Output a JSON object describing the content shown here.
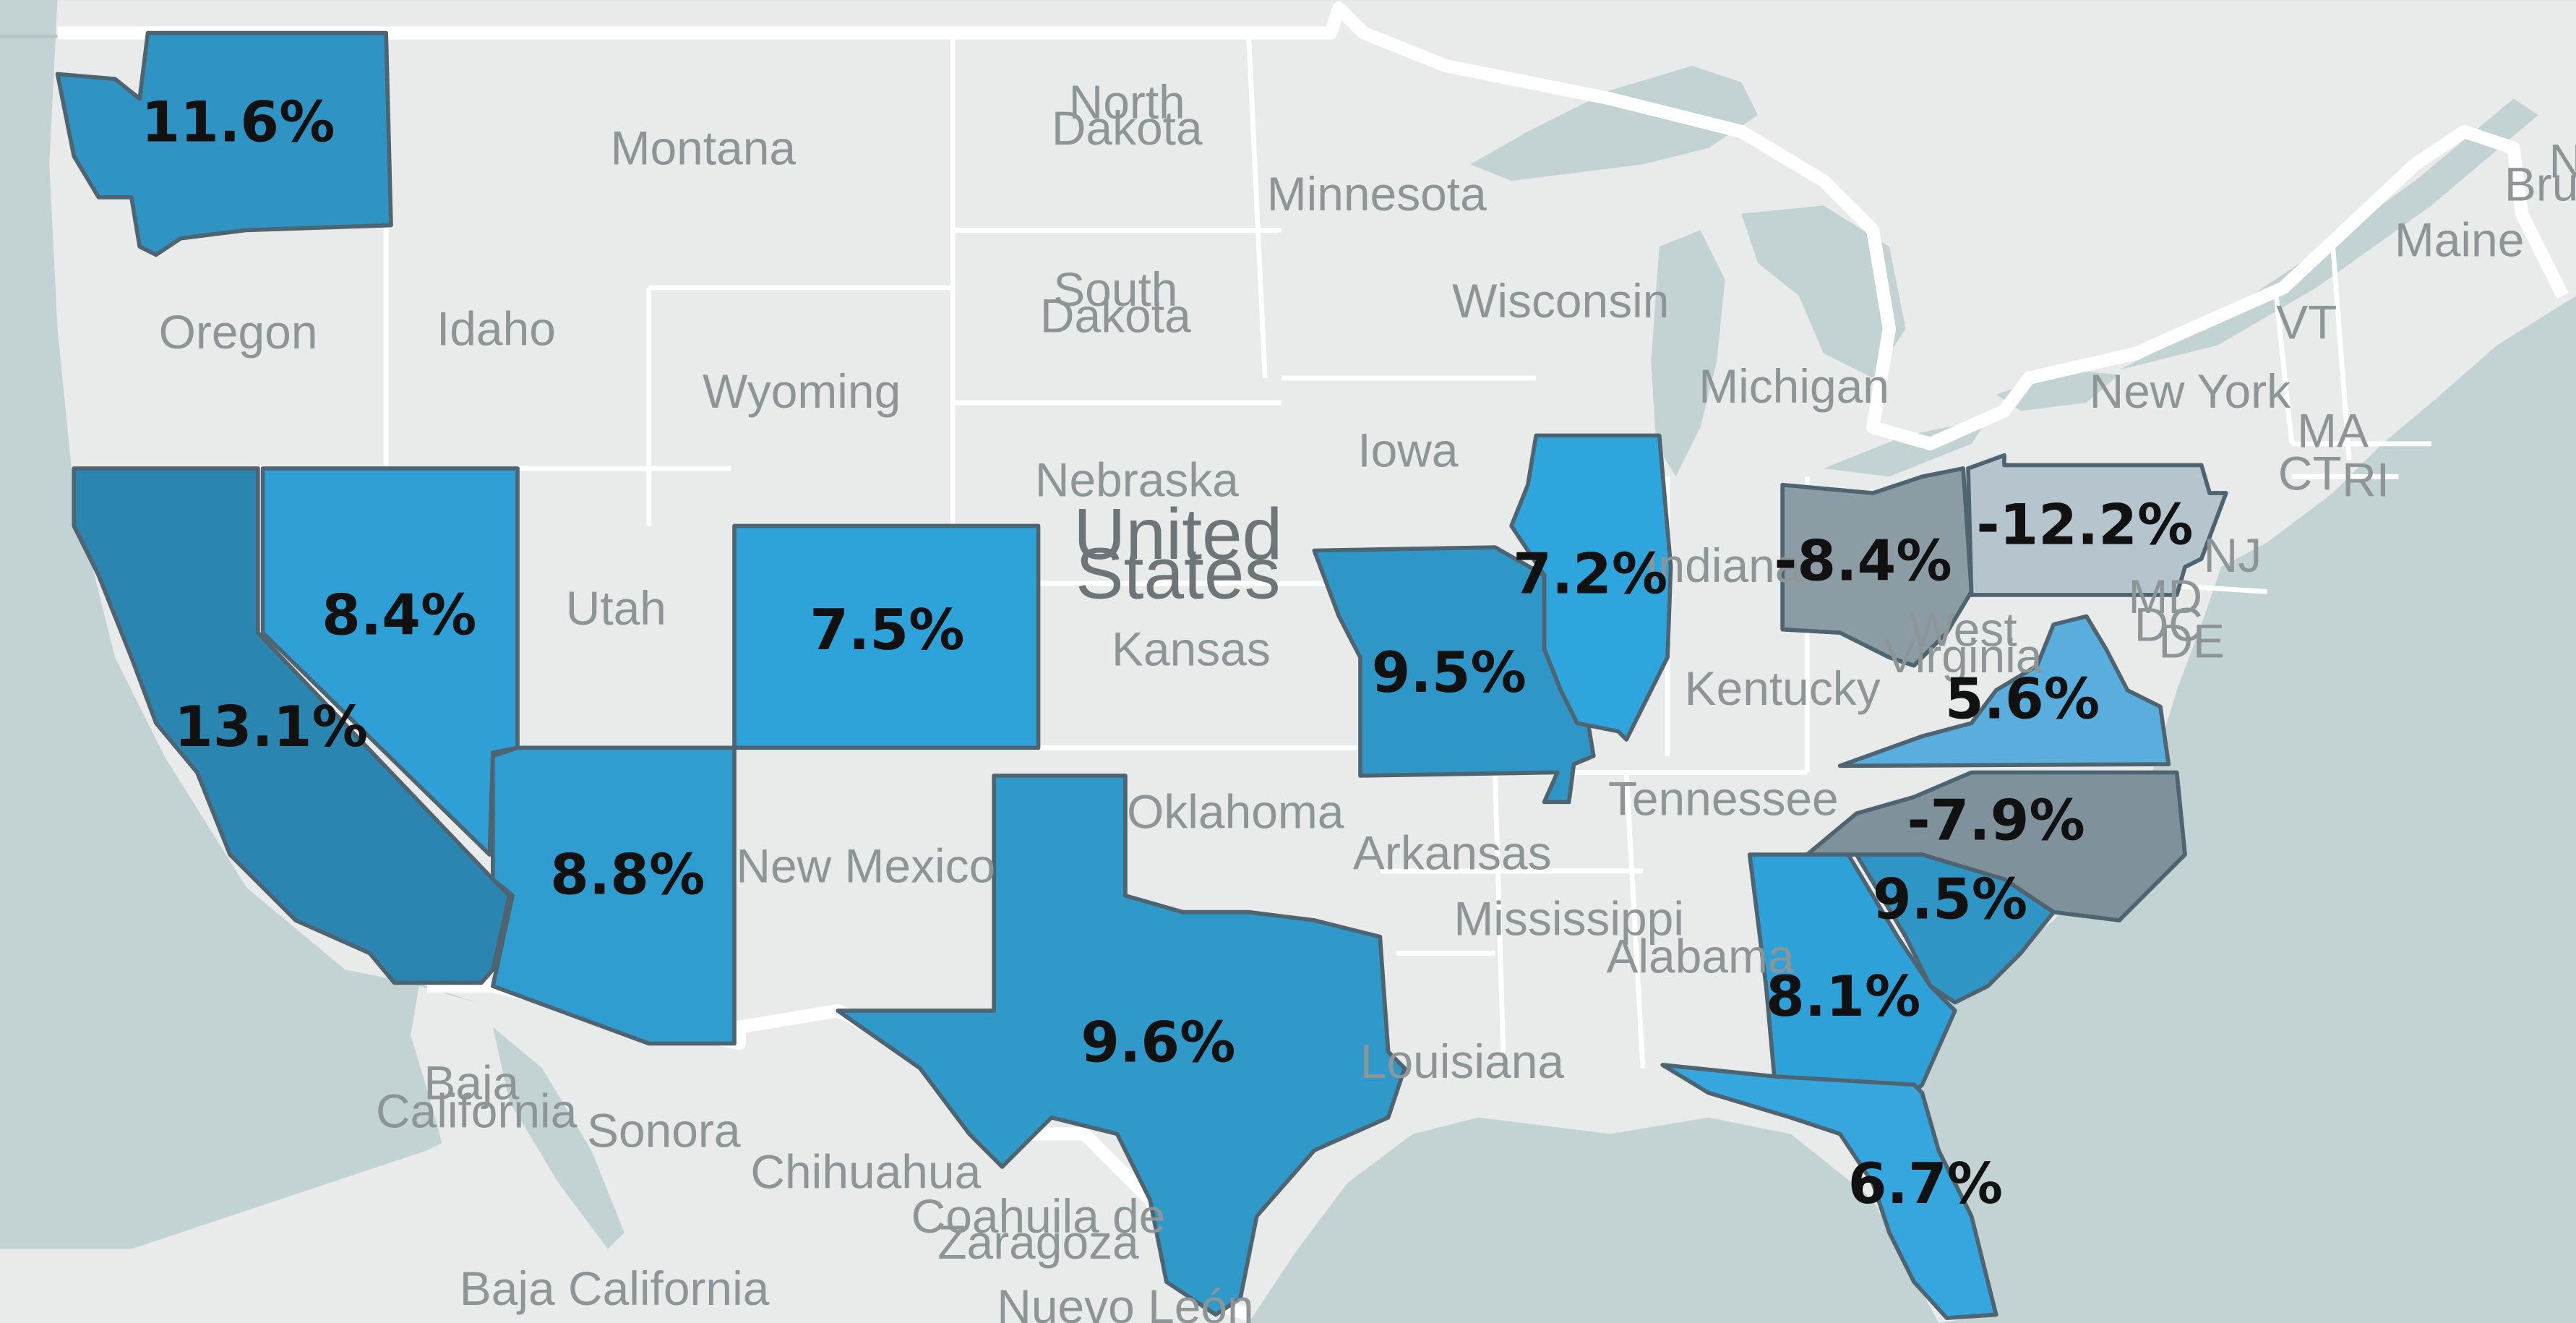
{
  "map": {
    "country_label_line1": "United",
    "country_label_line2": "States",
    "colors": {
      "ocean": "#c3d2d3",
      "land": "#e9eaea",
      "border": "#ffffff",
      "positive_high": "#2a85b0",
      "positive_mid": "#2f9acb",
      "positive_low": "#2ea3da",
      "positive_pale": "#5aaedd",
      "negative_mid": "#7f929c",
      "negative_low": "#8c9ca5",
      "negative_pale": "#b5c4cd"
    },
    "base_labels": {
      "montana": "Montana",
      "north_dakota_1": "North",
      "north_dakota_2": "Dakota",
      "minnesota": "Minnesota",
      "oregon": "Oregon",
      "idaho": "Idaho",
      "wyoming": "Wyoming",
      "south_dakota_1": "South",
      "south_dakota_2": "Dakota",
      "wisconsin": "Wisconsin",
      "michigan": "Michigan",
      "iowa": "Iowa",
      "nebraska": "Nebraska",
      "utah": "Utah",
      "kansas": "Kansas",
      "indiana": "Indiana",
      "west_virginia_1": "West",
      "west_virginia_2": "Virginia",
      "kentucky": "Kentucky",
      "tennessee": "Tennessee",
      "oklahoma": "Oklahoma",
      "arkansas": "Arkansas",
      "new_mexico": "New Mexico",
      "mississippi": "Mississippi",
      "alabama": "Alabama",
      "louisiana": "Louisiana",
      "new_york": "New York",
      "maine": "Maine",
      "vt": "VT",
      "ma": "MA",
      "ct": "CT",
      "ri": "RI",
      "nj": "NJ",
      "md": "MD",
      "dc": "DC",
      "de": "DE",
      "baja_california_1": "Baja",
      "baja_california_2": "California",
      "sonora": "Sonora",
      "chihuahua": "Chihuahua",
      "coahuila_1": "Coahuila de",
      "coahuila_2": "Zaragoza",
      "baja_california_full": "Baja California",
      "nuevo_leon": "Nuevo León",
      "n_edge": "N",
      "brun_edge": "Brun"
    },
    "states": [
      {
        "id": "washington",
        "name": "Washington",
        "value": 11.6,
        "label": "11.6%",
        "color": "#2f93c4"
      },
      {
        "id": "california",
        "name": "California",
        "value": 13.1,
        "label": "13.1%",
        "color": "#2a85b0"
      },
      {
        "id": "nevada",
        "name": "Nevada",
        "value": 8.4,
        "label": "8.4%",
        "color": "#2fa0d6"
      },
      {
        "id": "arizona",
        "name": "Arizona",
        "value": 8.8,
        "label": "8.8%",
        "color": "#2f9dd0"
      },
      {
        "id": "colorado",
        "name": "Colorado",
        "value": 7.5,
        "label": "7.5%",
        "color": "#2ea3da"
      },
      {
        "id": "texas",
        "name": "Texas",
        "value": 9.6,
        "label": "9.6%",
        "color": "#2f99c9"
      },
      {
        "id": "missouri",
        "name": "Missouri",
        "value": 9.5,
        "label": "9.5%",
        "color": "#2f97c7"
      },
      {
        "id": "illinois",
        "name": "Illinois",
        "value": 7.2,
        "label": "7.2%",
        "color": "#2ea5dc"
      },
      {
        "id": "ohio",
        "name": "Ohio",
        "value": -8.4,
        "label": "-8.4%",
        "color": "#8c9ca5"
      },
      {
        "id": "pennsylvania",
        "name": "Pennsylvania",
        "value": -12.2,
        "label": "-12.2%",
        "color": "#b5c4cd"
      },
      {
        "id": "virginia",
        "name": "Virginia",
        "value": 5.6,
        "label": "5.6%",
        "color": "#5aaedd"
      },
      {
        "id": "north_carolina",
        "name": "North Carolina",
        "value": -7.9,
        "label": "-7.9%",
        "color": "#7f929c"
      },
      {
        "id": "south_carolina",
        "name": "South Carolina",
        "value": 9.5,
        "label": "9.5%",
        "color": "#2f95c4"
      },
      {
        "id": "georgia",
        "name": "Georgia",
        "value": 8.1,
        "label": "8.1%",
        "color": "#2ea1d8"
      },
      {
        "id": "florida",
        "name": "Florida",
        "value": 6.7,
        "label": "6.7%",
        "color": "#36a6de"
      }
    ]
  }
}
